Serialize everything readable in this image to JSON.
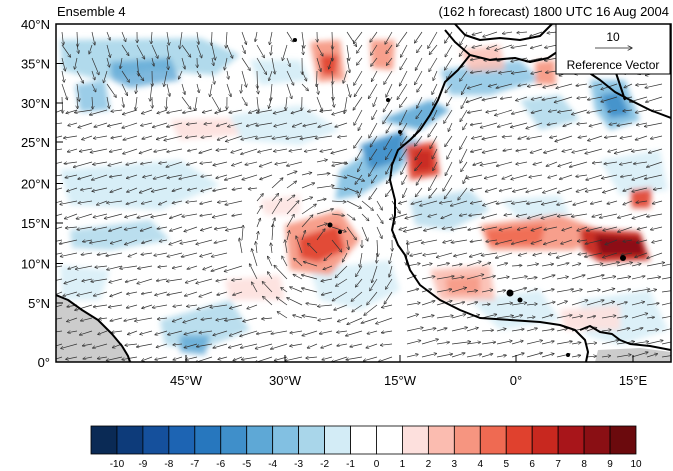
{
  "header": {
    "ensemble_label": "Ensemble 4",
    "forecast_label": "(162 h forecast) 1800 UTC 16 Aug 2004"
  },
  "lat_labels": [
    "40°N",
    "35°N",
    "30°N",
    "25°N",
    "20°N",
    "15°N",
    "10°N",
    "5°N",
    "0°"
  ],
  "lon_labels": [
    "45°W",
    "30°W",
    "15°W",
    "0°",
    "15°E"
  ],
  "reference_vector": {
    "magnitude": "10",
    "label": "Reference Vector"
  },
  "colorbar": {
    "tick_labels": [
      "-10",
      "-9",
      "-8",
      "-7",
      "-6",
      "-5",
      "-4",
      "-3",
      "-2",
      "-1",
      "0",
      "1",
      "2",
      "3",
      "4",
      "5",
      "6",
      "7",
      "8",
      "9",
      "10"
    ],
    "colors": [
      "#0a2a55",
      "#0d3b7a",
      "#15509c",
      "#1d64b3",
      "#2777be",
      "#3f8fca",
      "#5ea8d6",
      "#82c0e2",
      "#a9d6ea",
      "#d3ecf6",
      "#ffffff",
      "#ffffff",
      "#fde0dd",
      "#fbbcb0",
      "#f69580",
      "#ef6a52",
      "#e0412e",
      "#c8281f",
      "#a8151a",
      "#8a0f14",
      "#6b0a0d"
    ]
  },
  "map": {
    "land_mask_color": "#cccccc",
    "coastline_color": "#000000",
    "vector_color": "#333333"
  }
}
